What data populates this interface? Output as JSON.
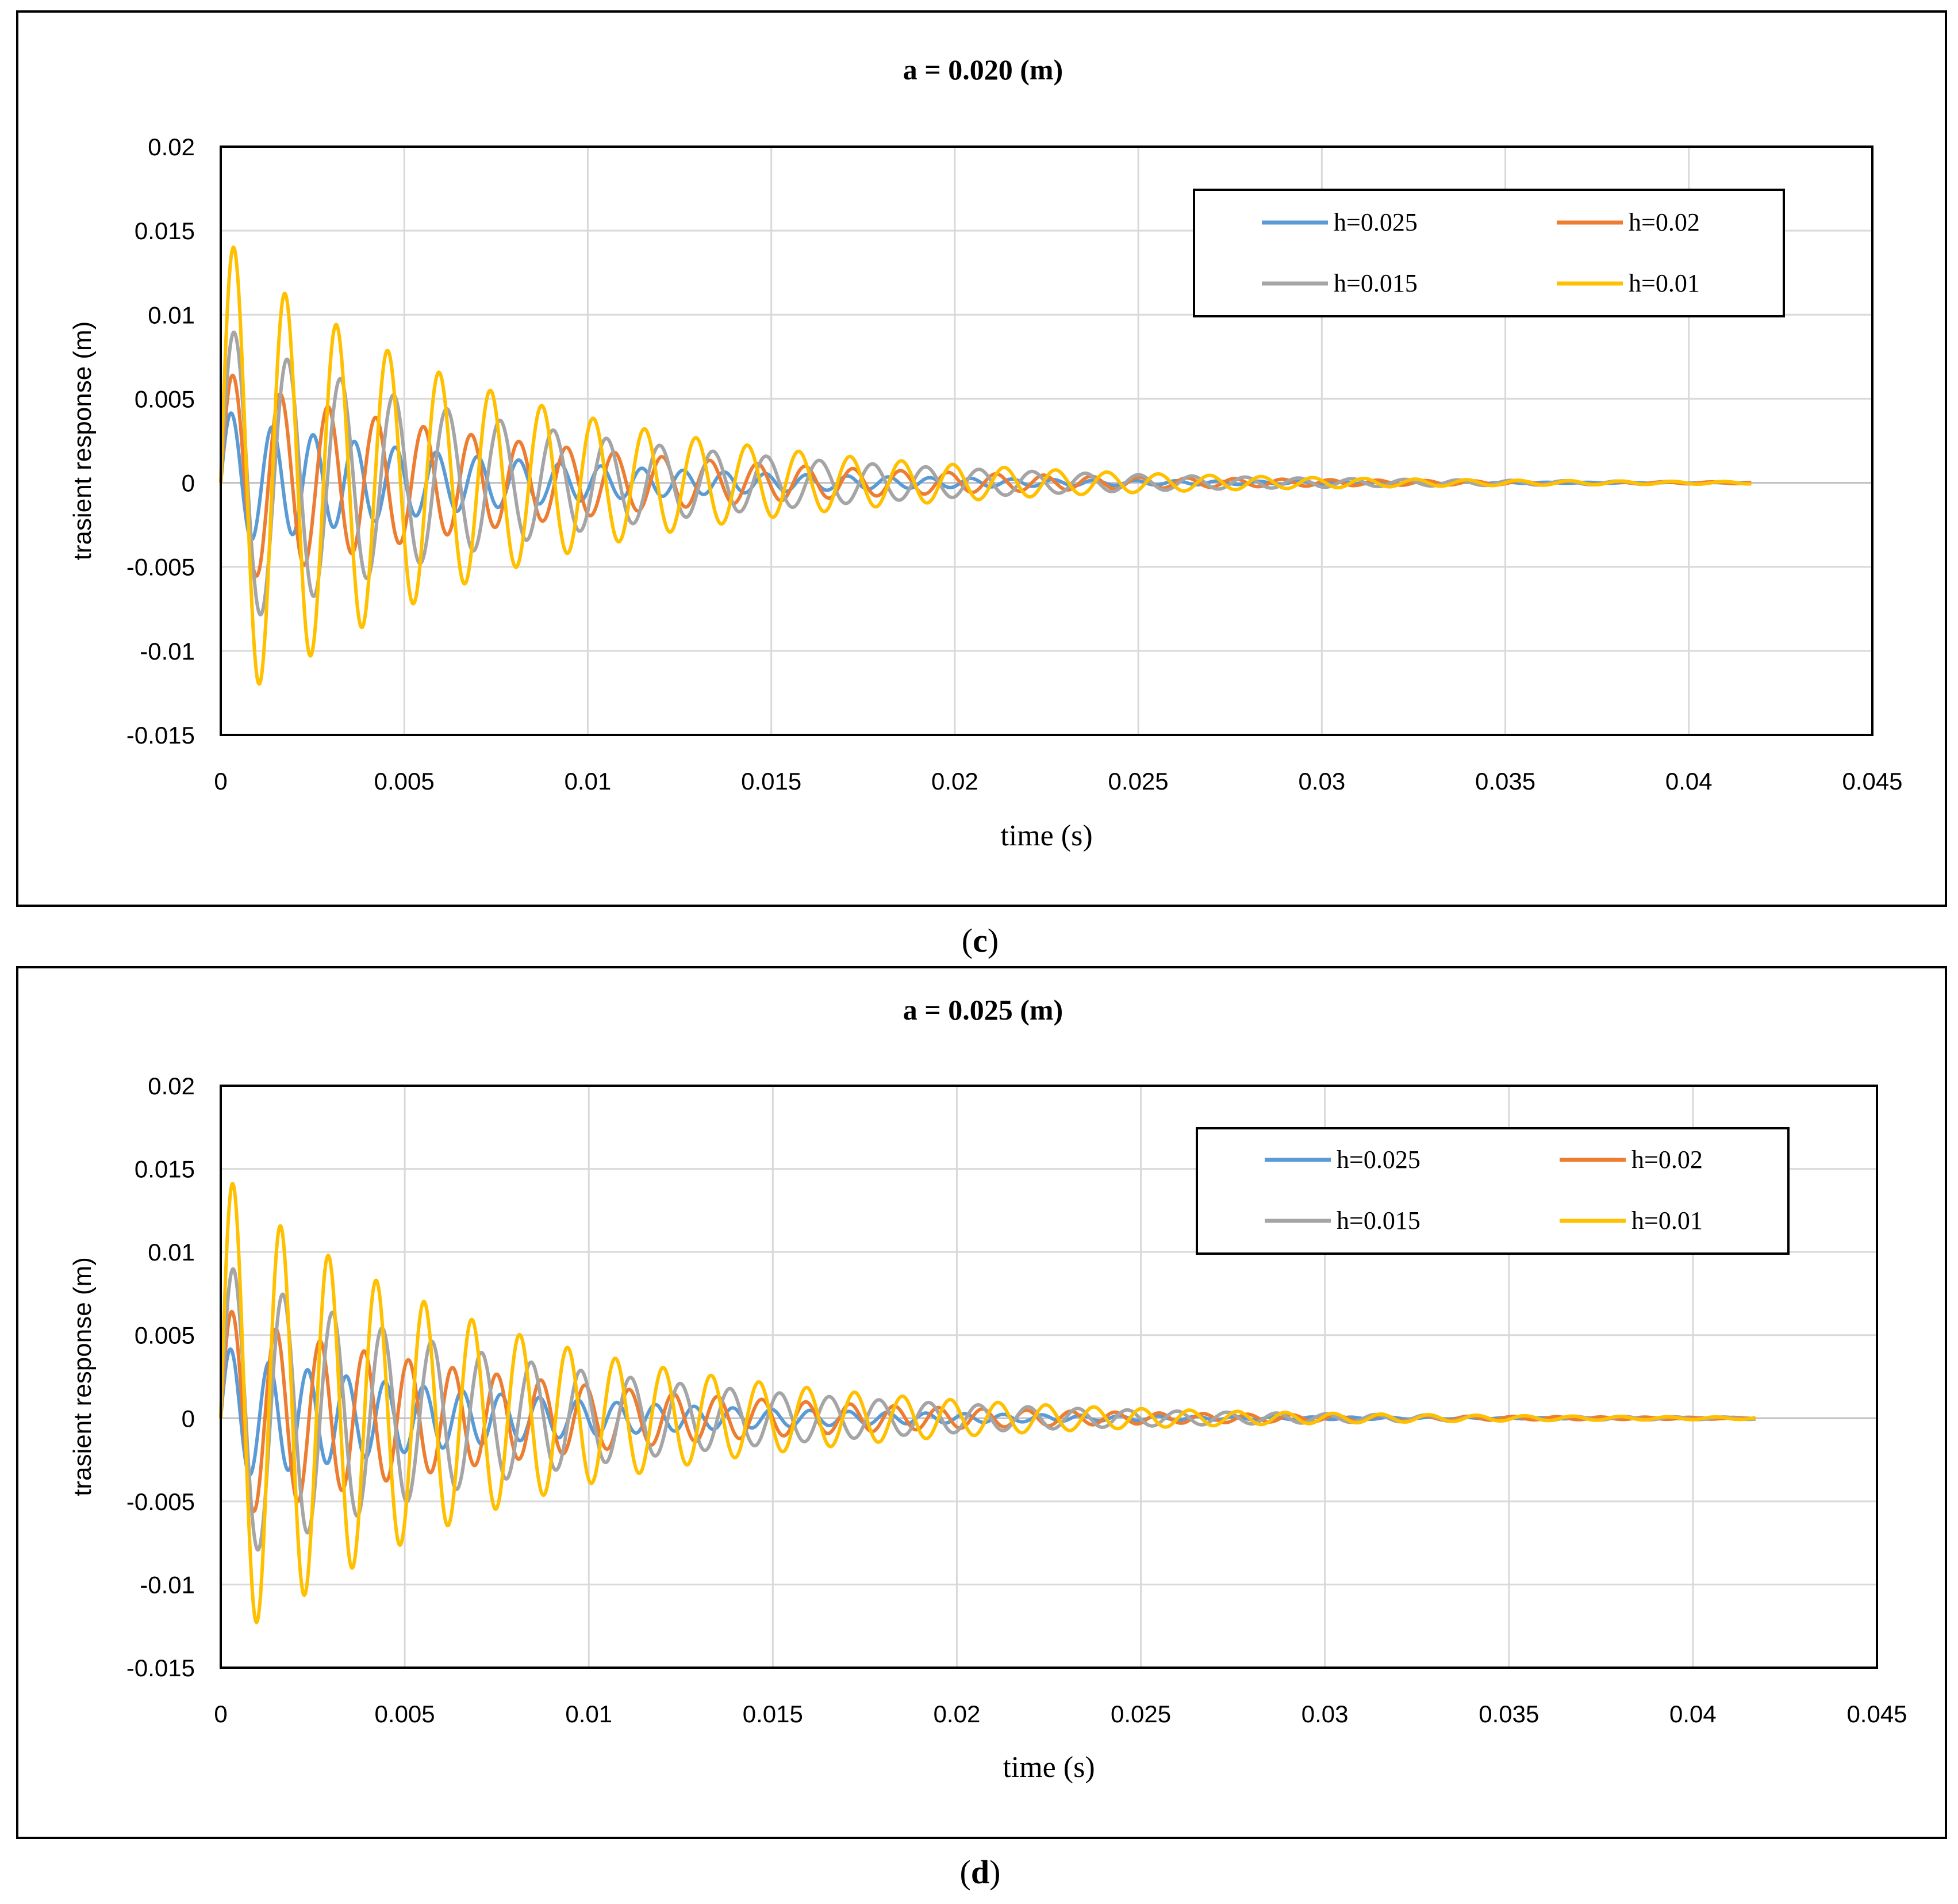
{
  "chart_data": [
    {
      "type": "line",
      "panel_label": "c",
      "title": "a = 0.020 (m)",
      "xlabel": "time (s)",
      "ylabel": "trasient response (m)",
      "xlim": [
        0,
        0.045
      ],
      "ylim": [
        -0.015,
        0.02
      ],
      "x_ticks": [
        "0",
        "0.005",
        "0.01",
        "0.015",
        "0.02",
        "0.025",
        "0.03",
        "0.035",
        "0.04",
        "0.045"
      ],
      "y_ticks": [
        "0.02",
        "0.015",
        "0.01",
        "0.005",
        "0",
        "-0.005",
        "-0.01",
        "-0.015"
      ],
      "grid": true,
      "legend_position": "top-right",
      "series": [
        {
          "name": "h=0.025",
          "color": "#5B9BD5",
          "first_peak": 0.0045,
          "first_trough": -0.0035,
          "period": 0.00112,
          "decay_time": 0.0075,
          "x_end": 0.0417
        },
        {
          "name": "h=0.02",
          "color": "#ED7D31",
          "first_peak": 0.0068,
          "first_trough": -0.006,
          "period": 0.0013,
          "decay_time": 0.0085,
          "x_end": 0.0417
        },
        {
          "name": "h=0.015",
          "color": "#A5A5A5",
          "first_peak": 0.0095,
          "first_trough": -0.0087,
          "period": 0.00145,
          "decay_time": 0.0085,
          "x_end": 0.0417
        },
        {
          "name": "h=0.01",
          "color": "#FFC000",
          "first_peak": 0.015,
          "first_trough": -0.0132,
          "period": 0.0014,
          "decay_time": 0.0078,
          "x_end": 0.0417
        }
      ]
    },
    {
      "type": "line",
      "panel_label": "d",
      "title": "a = 0.025 (m)",
      "xlabel": "time (s)",
      "ylabel": "trasient response (m)",
      "xlim": [
        0,
        0.045
      ],
      "ylim": [
        -0.015,
        0.02
      ],
      "x_ticks": [
        "0",
        "0.005",
        "0.01",
        "0.015",
        "0.02",
        "0.025",
        "0.03",
        "0.035",
        "0.04",
        "0.045"
      ],
      "y_ticks": [
        "0.02",
        "0.015",
        "0.01",
        "0.005",
        "0",
        "-0.005",
        "-0.01",
        "-0.015"
      ],
      "grid": true,
      "legend_position": "top-right",
      "series": [
        {
          "name": "h=0.025",
          "color": "#5B9BD5",
          "first_peak": 0.0045,
          "first_trough": -0.0035,
          "period": 0.00105,
          "decay_time": 0.0075,
          "x_end": 0.0417
        },
        {
          "name": "h=0.02",
          "color": "#ED7D31",
          "first_peak": 0.0068,
          "first_trough": -0.006,
          "period": 0.0012,
          "decay_time": 0.0085,
          "x_end": 0.0417
        },
        {
          "name": "h=0.015",
          "color": "#A5A5A5",
          "first_peak": 0.0095,
          "first_trough": -0.0087,
          "period": 0.00135,
          "decay_time": 0.0085,
          "x_end": 0.0417
        },
        {
          "name": "h=0.01",
          "color": "#FFC000",
          "first_peak": 0.015,
          "first_trough": -0.0135,
          "period": 0.0013,
          "decay_time": 0.0078,
          "x_end": 0.0417
        }
      ]
    }
  ]
}
